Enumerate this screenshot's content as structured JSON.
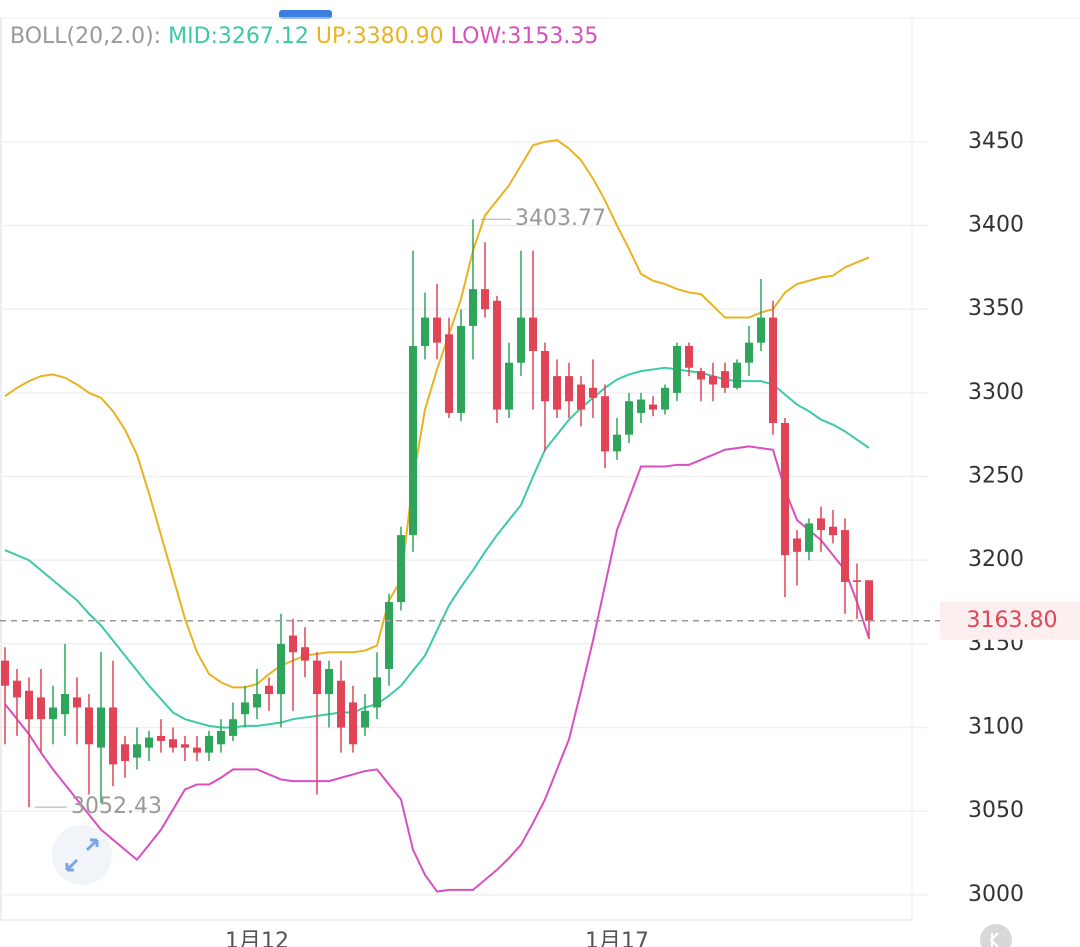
{
  "chart_data": {
    "type": "candlestick",
    "indicator": "BOLL(20,2.0):",
    "categories": [
      null,
      null,
      null,
      null,
      null,
      null,
      null,
      null,
      null,
      null,
      null,
      null,
      null,
      null,
      null,
      null,
      null,
      null,
      null,
      null,
      null,
      "1月12",
      null,
      null,
      null,
      null,
      null,
      null,
      null,
      null,
      null,
      null,
      null,
      null,
      null,
      null,
      null,
      null,
      null,
      null,
      null,
      null,
      null,
      null,
      null,
      null,
      null,
      null,
      null,
      null,
      null,
      "1月17",
      null,
      null,
      null,
      null,
      null,
      null,
      null,
      null,
      null,
      null,
      null,
      null,
      null,
      null,
      null,
      null,
      null,
      null,
      null,
      null,
      null
    ],
    "open": [
      3140,
      3128,
      3122,
      3118,
      3105,
      3108,
      3118,
      3112,
      3088,
      3112,
      3090,
      3082,
      3088,
      3095,
      3093,
      3090,
      3088,
      3085,
      3090,
      3095,
      3108,
      3112,
      3125,
      3120,
      3155,
      3148,
      3140,
      3120,
      3128,
      3115,
      3100,
      3112,
      3135,
      3175,
      3215,
      3328,
      3345,
      3335,
      3288,
      3340,
      3362,
      3355,
      3290,
      3318,
      3345,
      3325,
      3310,
      3310,
      3305,
      3303,
      3298,
      3265,
      3275,
      3288,
      3293,
      3290,
      3300,
      3328,
      3313,
      3310,
      3313,
      3303,
      3318,
      3330,
      3345,
      3282,
      3213,
      3205,
      3225,
      3220,
      3218,
      3188,
      3188
    ],
    "high": [
      3148,
      3135,
      3130,
      3135,
      3125,
      3150,
      3130,
      3120,
      3145,
      3140,
      3095,
      3100,
      3098,
      3105,
      3100,
      3095,
      3095,
      3098,
      3105,
      3115,
      3125,
      3135,
      3130,
      3168,
      3165,
      3160,
      3145,
      3140,
      3140,
      3125,
      3120,
      3145,
      3180,
      3220,
      3385,
      3360,
      3365,
      3345,
      3350,
      3403.77,
      3390,
      3358,
      3330,
      3385,
      3385,
      3330,
      3320,
      3318,
      3310,
      3320,
      3305,
      3285,
      3300,
      3300,
      3298,
      3305,
      3330,
      3330,
      3315,
      3318,
      3318,
      3320,
      3340,
      3368,
      3355,
      3285,
      3218,
      3225,
      3232,
      3230,
      3225,
      3198,
      3188
    ],
    "low": [
      3090,
      3095,
      3052.43,
      3085,
      3090,
      3095,
      3090,
      3060,
      3055,
      3065,
      3070,
      3075,
      3080,
      3085,
      3085,
      3080,
      3080,
      3080,
      3085,
      3092,
      3100,
      3105,
      3110,
      3100,
      3110,
      3130,
      3060,
      3100,
      3085,
      3085,
      3095,
      3105,
      3125,
      3170,
      3205,
      3320,
      3320,
      3285,
      3283,
      3320,
      3345,
      3282,
      3285,
      3310,
      3290,
      3265,
      3285,
      3285,
      3280,
      3285,
      3255,
      3260,
      3270,
      3282,
      3286,
      3287,
      3295,
      3310,
      3295,
      3295,
      3300,
      3302,
      3310,
      3325,
      3275,
      3178,
      3185,
      3200,
      3205,
      3210,
      3168,
      3165,
      3153
    ],
    "close": [
      3125,
      3118,
      3105,
      3105,
      3112,
      3120,
      3112,
      3090,
      3112,
      3078,
      3080,
      3090,
      3094,
      3092,
      3088,
      3088,
      3085,
      3095,
      3098,
      3105,
      3115,
      3120,
      3120,
      3150,
      3145,
      3140,
      3120,
      3135,
      3100,
      3090,
      3110,
      3130,
      3175,
      3215,
      3328,
      3345,
      3330,
      3288,
      3340,
      3362,
      3350,
      3290,
      3318,
      3345,
      3325,
      3295,
      3290,
      3295,
      3290,
      3297,
      3265,
      3275,
      3295,
      3296,
      3290,
      3303,
      3328,
      3315,
      3308,
      3305,
      3303,
      3318,
      3330,
      3345,
      3282,
      3203,
      3205,
      3222,
      3218,
      3215,
      3187,
      3187,
      3163.8
    ],
    "up_color": "#2ea55a",
    "down_color": "#e04456",
    "series": [
      {
        "name": "MID:3267.12",
        "color": "#3cc9a8",
        "values": [
          3206,
          3203,
          3200,
          3194,
          3188,
          3182,
          3176,
          3168,
          3161,
          3152,
          3143,
          3134,
          3125,
          3117,
          3109,
          3105,
          3103,
          3101,
          3100,
          3100,
          3101,
          3101,
          3102,
          3103,
          3105,
          3106,
          3107,
          3108,
          3109,
          3109,
          3112,
          3114,
          3119,
          3125,
          3134,
          3143,
          3158,
          3173,
          3184,
          3194,
          3205,
          3215,
          3224,
          3233,
          3250,
          3266,
          3275,
          3284,
          3291,
          3297,
          3303,
          3308,
          3311,
          3313,
          3314,
          3315,
          3314,
          3313,
          3312,
          3310,
          3308,
          3307,
          3307,
          3307,
          3305,
          3299,
          3293,
          3289,
          3284,
          3281,
          3277,
          3272,
          3267.12
        ]
      },
      {
        "name": "UP:3380.90",
        "color": "#e8b320",
        "values": [
          3298,
          3303,
          3307,
          3310,
          3311,
          3309,
          3305,
          3300,
          3297,
          3289,
          3278,
          3263,
          3240,
          3215,
          3190,
          3165,
          3145,
          3132,
          3127,
          3124,
          3124,
          3126,
          3132,
          3137,
          3140,
          3143,
          3144,
          3145,
          3145,
          3145,
          3146,
          3149,
          3176,
          3188,
          3248,
          3290,
          3314,
          3335,
          3356,
          3385,
          3406,
          3415,
          3424,
          3436,
          3448,
          3450,
          3451,
          3446,
          3439,
          3428,
          3415,
          3400,
          3386,
          3371,
          3367,
          3365,
          3362,
          3360,
          3359,
          3352,
          3345,
          3345,
          3345,
          3348,
          3350,
          3360,
          3365,
          3367,
          3369,
          3370,
          3375,
          3378,
          3380.9
        ]
      },
      {
        "name": "LOW:3153.35",
        "color": "#d94fc0",
        "values": [
          3114,
          3105,
          3096,
          3085,
          3075,
          3066,
          3057,
          3048,
          3039,
          3033,
          3027,
          3021,
          3030,
          3039,
          3051,
          3063,
          3066,
          3066,
          3070,
          3075,
          3075,
          3075,
          3072,
          3069,
          3068,
          3068,
          3068,
          3068,
          3070,
          3072,
          3074,
          3075,
          3066,
          3057,
          3027,
          3012,
          3002,
          3003,
          3003,
          3003,
          3009,
          3015,
          3022,
          3030,
          3043,
          3057,
          3075,
          3093,
          3122,
          3152,
          3185,
          3218,
          3237,
          3256,
          3256,
          3256,
          3257,
          3257,
          3260,
          3263,
          3266,
          3267,
          3268,
          3267,
          3266,
          3242,
          3224,
          3218,
          3212,
          3203,
          3194,
          3175,
          3153.35
        ]
      }
    ],
    "high_label": 3403.77,
    "low_label": 3052.43,
    "last_price": {
      "value": 3163.8,
      "label": "3163.80"
    },
    "ylim": [
      2985,
      3524
    ],
    "yticks": [
      3000,
      3050,
      3100,
      3150,
      3200,
      3250,
      3300,
      3350,
      3400,
      3450
    ],
    "grid": true
  }
}
